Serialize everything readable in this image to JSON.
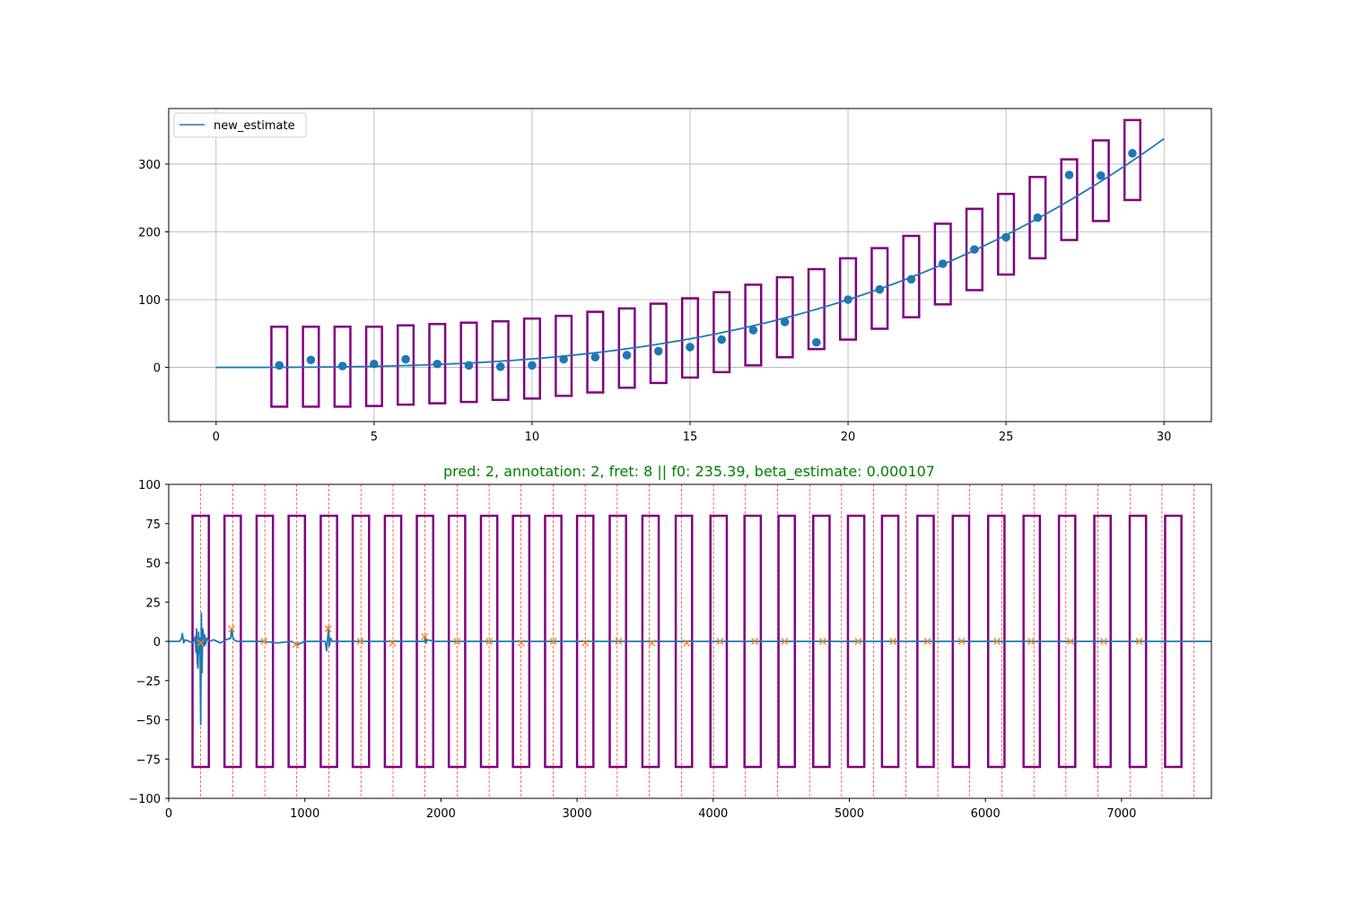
{
  "chart_data": [
    {
      "type": "scatter",
      "title": "",
      "xlabel": "",
      "ylabel": "",
      "xlim": [
        -1.5,
        31.5
      ],
      "ylim": [
        -80,
        382
      ],
      "grid": true,
      "legend": {
        "position": "top-left",
        "entries": [
          "new_estimate"
        ]
      },
      "xticks": [
        0,
        5,
        10,
        15,
        20,
        25,
        30
      ],
      "xtick_labels": [
        "0",
        "5",
        "10",
        "15",
        "20",
        "25",
        "30"
      ],
      "yticks": [
        0,
        100,
        200,
        300
      ],
      "ytick_labels": [
        "0",
        "100",
        "200",
        "300"
      ],
      "colors": {
        "line": "#1f77b4",
        "points": "#1f77b4",
        "boxes": "#800080"
      },
      "line": {
        "name": "new_estimate",
        "x0": 0,
        "x1": 30,
        "formula": "y = 0.0125 * x^3",
        "coef": 0.0125
      },
      "points": {
        "x": [
          2,
          3,
          4,
          5,
          6,
          7,
          8,
          9,
          10,
          11,
          12,
          13,
          14,
          15,
          16,
          17,
          18,
          19,
          20,
          21,
          22,
          23,
          24,
          25,
          26,
          27,
          28,
          29
        ],
        "y": [
          3,
          11,
          2,
          5,
          12,
          5,
          3,
          1,
          3,
          12,
          15,
          18,
          24,
          30,
          41,
          55,
          67,
          37,
          100,
          115,
          130,
          153,
          174,
          192,
          221,
          284,
          283,
          316
        ]
      },
      "boxes": {
        "x": [
          2,
          3,
          4,
          5,
          6,
          7,
          8,
          9,
          10,
          11,
          12,
          13,
          14,
          15,
          16,
          17,
          18,
          19,
          20,
          21,
          22,
          23,
          24,
          25,
          26,
          27,
          28,
          29
        ],
        "halfwidth": 0.25,
        "low": [
          -58,
          -58,
          -58,
          -57,
          -55,
          -53,
          -51,
          -48,
          -46,
          -42,
          -37,
          -30,
          -23,
          -15,
          -7,
          3,
          15,
          27,
          41,
          57,
          74,
          93,
          114,
          137,
          161,
          188,
          216,
          247
        ],
        "high": [
          60,
          60,
          60,
          60,
          62,
          64,
          66,
          68,
          72,
          76,
          82,
          87,
          94,
          102,
          111,
          122,
          133,
          145,
          161,
          176,
          194,
          212,
          234,
          256,
          281,
          307,
          335,
          365
        ]
      }
    },
    {
      "type": "line",
      "title": "pred: 2, annotation: 2, fret: 8 || f0: 235.39, beta_estimate: 0.000107",
      "title_color": "#008000",
      "xlabel": "",
      "ylabel": "",
      "xlim": [
        0,
        7660
      ],
      "ylim": [
        -100,
        100
      ],
      "grid": false,
      "xticks": [
        0,
        1000,
        2000,
        3000,
        4000,
        5000,
        6000,
        7000
      ],
      "xtick_labels": [
        "0",
        "1000",
        "2000",
        "3000",
        "4000",
        "5000",
        "6000",
        "7000"
      ],
      "yticks": [
        100,
        75,
        50,
        25,
        0,
        -25,
        -50,
        -75,
        -100
      ],
      "ytick_labels": [
        "100",
        "75",
        "50",
        "25",
        "0",
        "−25",
        "−50",
        "−75",
        "−100"
      ],
      "colors": {
        "signal": "#1f77b4",
        "peaks": "#ff7f0e",
        "boxes": "#800080",
        "vlines": "#ff0000"
      },
      "vlines_x": [
        235,
        470,
        706,
        941,
        1177,
        1412,
        1648,
        1883,
        2118,
        2354,
        2589,
        2825,
        3060,
        3295,
        3531,
        3766,
        4002,
        4237,
        4473,
        4708,
        4943,
        5179,
        5414,
        5650,
        5885,
        6120,
        6356,
        6591,
        6827,
        7062,
        7297,
        7533
      ],
      "boxes": {
        "centers": [
          235,
          470,
          706,
          941,
          1177,
          1412,
          1648,
          1883,
          2118,
          2354,
          2589,
          2825,
          3060,
          3300,
          3540,
          3785,
          4040,
          4290,
          4540,
          4795,
          5050,
          5300,
          5560,
          5820,
          6080,
          6340,
          6600,
          6860,
          7120,
          7380
        ],
        "halfwidth": 60,
        "low": -80,
        "high": 80
      },
      "peaks": {
        "x": [
          235,
          462,
          700,
          935,
          1172,
          1408,
          1644,
          1880,
          2118,
          2354,
          2590,
          2825,
          3060,
          3305,
          3550,
          3805,
          4050,
          4305,
          4525,
          4805,
          5065,
          5320,
          5575,
          5825,
          6085,
          6335,
          6625,
          6870,
          7130
        ],
        "y": [
          -1,
          8,
          0,
          -2,
          8,
          0,
          -1,
          3,
          0,
          0,
          -1,
          0,
          -1,
          0,
          -1,
          -1,
          0,
          0,
          0,
          0,
          0,
          0,
          0,
          0,
          0,
          0,
          0,
          0,
          0
        ]
      },
      "signal": {
        "x": [
          0,
          80,
          95,
          100,
          110,
          120,
          150,
          180,
          195,
          200,
          205,
          210,
          215,
          220,
          225,
          230,
          235,
          240,
          245,
          250,
          255,
          260,
          265,
          270,
          280,
          300,
          330,
          380,
          420,
          455,
          460,
          465,
          470,
          480,
          500,
          550,
          600,
          700,
          800,
          900,
          950,
          1000,
          1100,
          1150,
          1160,
          1170,
          1175,
          1180,
          1190,
          1200,
          1250,
          1400,
          1700,
          1880,
          1885,
          1890,
          1900,
          1950,
          2500,
          3500,
          4500,
          5500,
          6500,
          7660
        ],
        "y": [
          0,
          0,
          2,
          5,
          -1,
          1,
          0,
          -1,
          3,
          -7,
          8,
          -13,
          -17,
          6,
          -8,
          2,
          -53,
          18,
          -20,
          8,
          5,
          -3,
          4,
          -2,
          2,
          0,
          1,
          -1,
          1,
          2,
          6,
          8,
          3,
          1,
          0,
          0,
          0,
          0,
          -1,
          0,
          -2,
          0,
          0,
          0,
          -6,
          4,
          9,
          -3,
          2,
          0,
          0,
          0,
          0,
          0,
          3,
          -1,
          1,
          0,
          0,
          0,
          0,
          0,
          0,
          0
        ]
      }
    }
  ]
}
